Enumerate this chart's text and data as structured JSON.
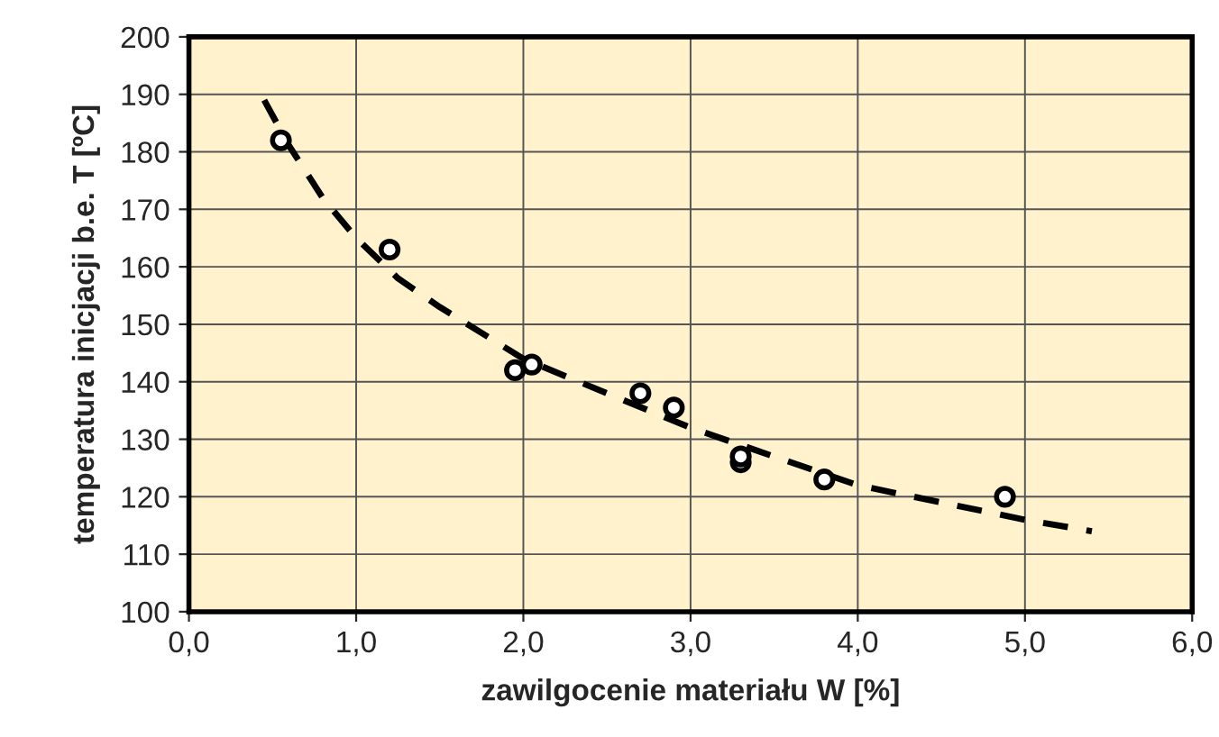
{
  "chart_data": {
    "type": "scatter",
    "xlabel": "zawilgocenie materiału W [%]",
    "ylabel": "temperatura inicjacji b.e. T [ºC]",
    "xlim": [
      0,
      6
    ],
    "ylim": [
      100,
      200
    ],
    "xticks": [
      {
        "value": 0,
        "label": "0,0"
      },
      {
        "value": 1,
        "label": "1,0"
      },
      {
        "value": 2,
        "label": "2,0"
      },
      {
        "value": 3,
        "label": "3,0"
      },
      {
        "value": 4,
        "label": "4,0"
      },
      {
        "value": 5,
        "label": "5,0"
      },
      {
        "value": 6,
        "label": "6,0"
      }
    ],
    "yticks": [
      100,
      110,
      120,
      130,
      140,
      150,
      160,
      170,
      180,
      190,
      200
    ],
    "grid": true,
    "series": [
      {
        "marker": "circle",
        "color": "#000000",
        "x": [
          0.55,
          1.2,
          1.95,
          2.05,
          2.7,
          2.9,
          3.3,
          3.3,
          3.8,
          4.88
        ],
        "values": [
          182,
          163,
          142,
          143,
          138,
          135.5,
          126,
          127,
          123,
          120
        ]
      },
      {
        "type": "line",
        "line_style": "dashed",
        "marker": "none",
        "color": "#000000",
        "x": [
          0.45,
          0.6,
          0.8,
          1.0,
          1.25,
          1.5,
          2.0,
          2.5,
          3.0,
          3.5,
          4.0,
          4.5,
          5.0,
          5.4
        ],
        "values": [
          189,
          181,
          172,
          165,
          158,
          153,
          144,
          138,
          132,
          127,
          122,
          119,
          116,
          114
        ]
      }
    ]
  }
}
